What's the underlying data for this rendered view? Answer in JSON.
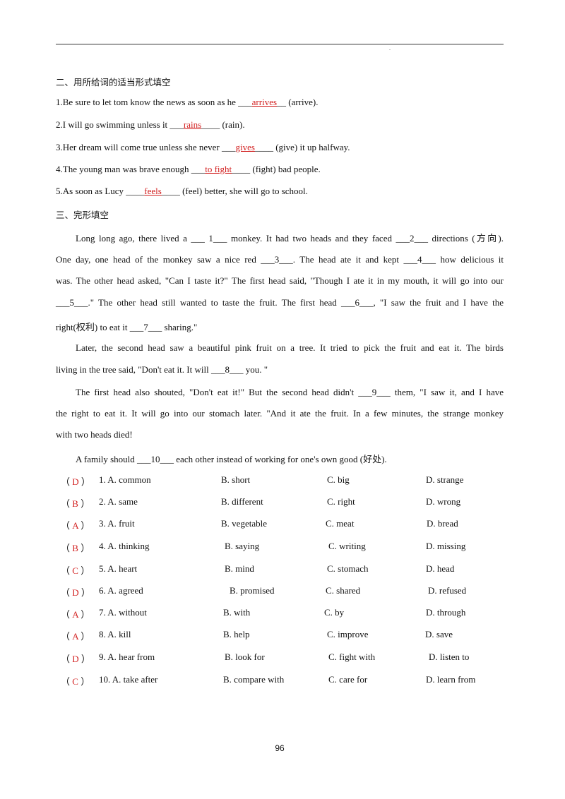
{
  "section2": {
    "title": "二、用所给词的适当形式填空",
    "items": [
      {
        "pre": "1.Be sure to let tom know the news as soon as he ___",
        "ans": "arrives",
        "post": "__ (arrive)."
      },
      {
        "pre": "2.I will go swimming unless it ___",
        "ans": "rains",
        "post": "____ (rain)."
      },
      {
        "pre": "3.Her dream will come true unless she never ___",
        "ans": "gives",
        "post": "____ (give) it up halfway."
      },
      {
        "pre": "4.The young man was brave enough ___",
        "ans": "to fight",
        "post": "____ (fight) bad people."
      },
      {
        "pre": "5.As soon as Lucy ____",
        "ans": "feels",
        "post": "____ (feel) better, she will go to school."
      }
    ]
  },
  "section3": {
    "title": "三、完形填空",
    "lines": [
      "Long long ago, there lived a ___ 1___ monkey. It had two heads and they faced ___2___ directions (方向).",
      "One day, one head of the monkey saw a nice red ___3___. The head ate it and kept ___4___ how delicious it",
      "was. The other head asked, \"Can I taste it?\" The first head said, \"Though I ate it in my mouth, it will go into our",
      "___5___.\" The other head still wanted to taste the fruit. The first head ___6___, \"I saw the fruit and I have the",
      "right(权利) to eat it ___7___ sharing.\"",
      "Later, the second head saw a beautiful pink fruit on a tree. It tried to pick the fruit and eat it. The birds",
      "living in the tree said, \"Don't eat it. It will ___8___ you. \"",
      "The first head also shouted, \"Don't eat it!\" But the second head didn't ___9___ them, \"I saw it, and I have",
      "the right to eat it. It will go into our stomach later. \"And it ate the fruit. In a few minutes, the strange monkey",
      "with two heads died!",
      "A family should ___10___ each other instead of working for one's own good (好处)."
    ],
    "questions": [
      {
        "ans": "D",
        "num": "1. A. common",
        "b": "B. short",
        "c": "C. big",
        "d": "D. strange"
      },
      {
        "ans": "B",
        "num": "2. A. same",
        "b": "B. different",
        "c": "C. right",
        "d": "D. wrong"
      },
      {
        "ans": "A",
        "num": "3. A. fruit",
        "b": "B. vegetable",
        "c": "C. meat",
        "d": "D. bread"
      },
      {
        "ans": "B",
        "num": "4. A. thinking",
        "b": "B. saying",
        "c": "C. writing",
        "d": "D. missing"
      },
      {
        "ans": "C",
        "num": "5. A. heart",
        "b": "B. mind",
        "c": "C. stomach",
        "d": "D. head"
      },
      {
        "ans": "D",
        "num": "6. A. agreed",
        "b": "B. promised",
        "c": "C. shared",
        "d": "D. refused"
      },
      {
        "ans": "A",
        "num": "7. A. without",
        "b": "B. with",
        "c": "C. by",
        "d": "D. through"
      },
      {
        "ans": "A",
        "num": "8. A. kill",
        "b": "B. help",
        "c": "C. improve",
        "d": "D. save"
      },
      {
        "ans": "D",
        "num": "9. A. hear from",
        "b": "B. look for",
        "c": "C. fight with",
        "d": "D. listen to"
      },
      {
        "ans": "C",
        "num": "10. A. take after",
        "b": "B. compare with",
        "c": "C. care for",
        "d": "D. learn from"
      }
    ]
  },
  "page_number": "96"
}
